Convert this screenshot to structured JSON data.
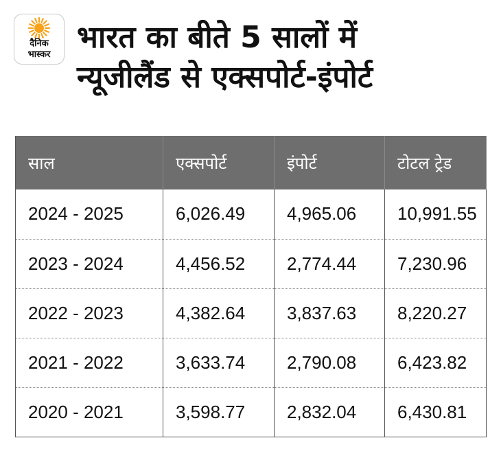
{
  "brand": {
    "logo_line1": "दैनिक",
    "logo_line2": "भास्कर",
    "accent": "#f7a21b"
  },
  "title_line1": "भारत का बीते 5 सालों में",
  "title_line2": "न्यूजीलैंड से एक्सपोर्ट-इंपोर्ट",
  "chart_data": {
    "type": "table",
    "columns": [
      "साल",
      "एक्सपोर्ट",
      "इंपोर्ट",
      "टोटल ट्रेड"
    ],
    "rows": [
      [
        "2024 - 2025",
        "6,026.49",
        "4,965.06",
        "10,991.55"
      ],
      [
        "2023 - 2024",
        "4,456.52",
        "2,774.44",
        "7,230.96"
      ],
      [
        "2022 - 2023",
        "4,382.64",
        "3,837.63",
        "8,220.27"
      ],
      [
        "2021 - 2022",
        "3,633.74",
        "2,790.08",
        "6,423.82"
      ],
      [
        "2020 - 2021",
        "3,598.77",
        "2,832.04",
        "6,430.81"
      ]
    ],
    "header_color": "#6e6e6e"
  }
}
